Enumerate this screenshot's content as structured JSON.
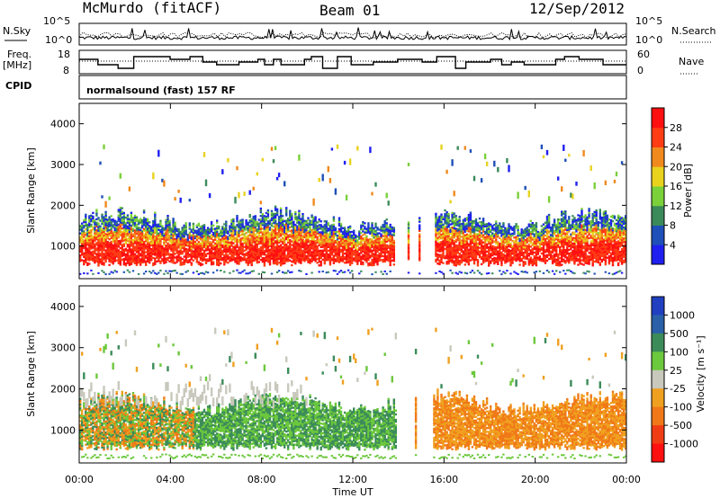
{
  "title": {
    "station": "McMurdo (fitACF)",
    "beam": "Beam 01",
    "date": "12/Sep/2012"
  },
  "header_labels": {
    "nsky": "N.Sky",
    "nsearch": "N.Search",
    "freq": "Freq.",
    "mhz": "[MHz]",
    "nave": "Nave",
    "cpid": "CPID",
    "cpid_text": "normalsound (fast) 157 RF",
    "noise_left_ticks": [
      "10^5",
      "10^0"
    ],
    "noise_right_ticks": [
      "10^5",
      "10^0"
    ],
    "freq_ticks": [
      "18",
      "8"
    ],
    "nave_ticks": [
      "60",
      "0"
    ]
  },
  "chart_data": [
    {
      "type": "heatmap",
      "name": "power",
      "ylabel": "Slant Range [km]",
      "yticks": [
        1000,
        2000,
        3000,
        4000
      ],
      "ylim": [
        200,
        4500
      ],
      "xlim": [
        0,
        24
      ],
      "colorbar_label": "Power [dB]",
      "colorbar_ticks": [
        "4",
        "8",
        "12",
        "16",
        "20",
        "24",
        "28"
      ],
      "colorbar_colors": [
        "#1f1ff0",
        "#1f4fb8",
        "#3b8a5a",
        "#7ad13a",
        "#e8d21e",
        "#f08a1e",
        "#ff3c14",
        "#ff1010"
      ]
    },
    {
      "type": "heatmap",
      "name": "velocity",
      "ylabel": "Slant Range [km]",
      "yticks": [
        1000,
        2000,
        3000,
        4000
      ],
      "ylim": [
        200,
        4500
      ],
      "xlim": [
        0,
        24
      ],
      "xlabel": "Time UT",
      "xticks": [
        "00:00",
        "04:00",
        "08:00",
        "12:00",
        "16:00",
        "20:00",
        "00:00"
      ],
      "colorbar_label": "Velocity [m s⁻¹]",
      "colorbar_ticks": [
        "1000",
        "500",
        "100",
        "25",
        "-25",
        "-100",
        "-500",
        "-1000"
      ],
      "colorbar_colors": [
        "#2040c0",
        "#2a60a8",
        "#3c8c5a",
        "#6cc83c",
        "#c8c8bc",
        "#f0a020",
        "#f07818",
        "#f03c14",
        "#ff1010"
      ]
    }
  ]
}
